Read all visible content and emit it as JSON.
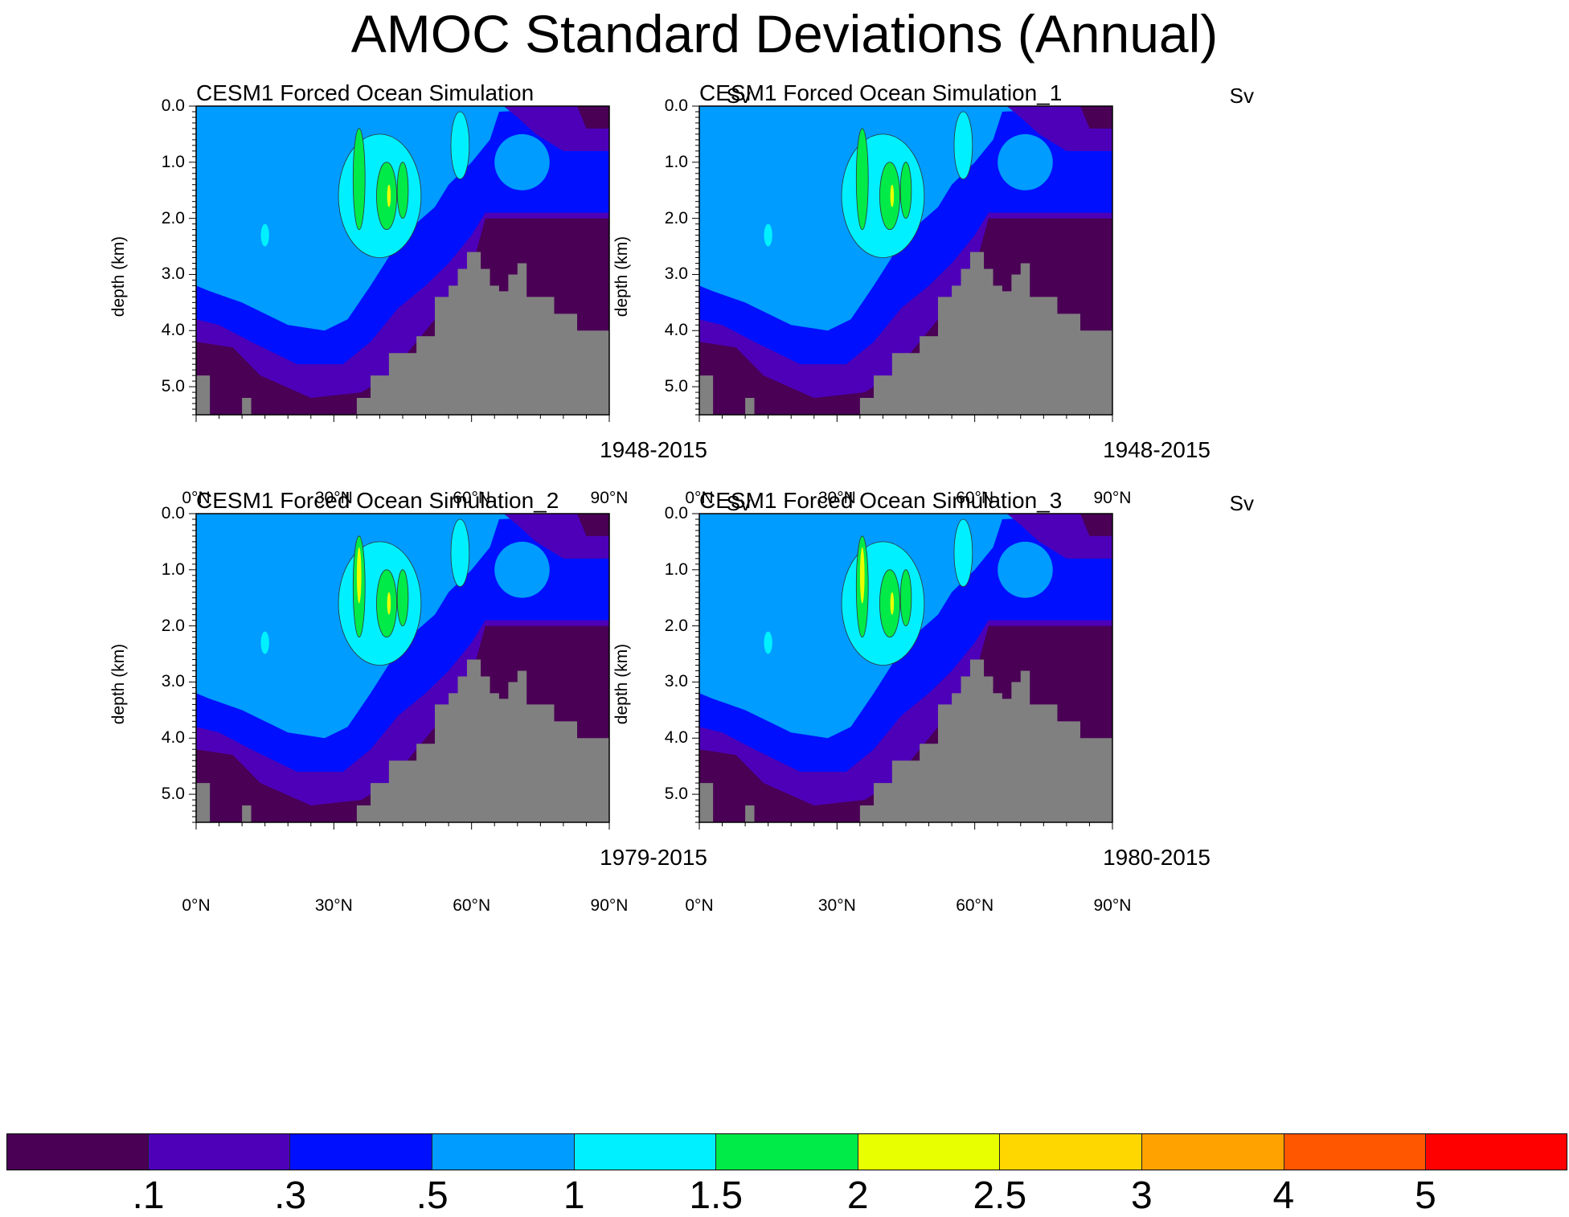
{
  "title": "AMOC Standard Deviations (Annual)",
  "colors": {
    "levels": [
      "#4a0055",
      "#4d00b8",
      "#0010ff",
      "#009cff",
      "#00f0ff",
      "#00ea48",
      "#e8ff00",
      "#ffd700",
      "#ffa200",
      "#ff5600",
      "#ff0000"
    ],
    "topography": "#808080"
  },
  "chart_data": [
    {
      "type": "heatmap",
      "title": "CESM1 Forced Ocean Simulation",
      "units": "Sv",
      "period": "1948-2015",
      "ylabel": "depth (km)",
      "xlabel": "",
      "xlim": [
        0,
        90
      ],
      "ylim": [
        5.5,
        0.0
      ],
      "xticks": [
        "0°N",
        "30°N",
        "60°N",
        "90°N"
      ],
      "yticks": [
        "0.0",
        "1.0",
        "2.0",
        "3.0",
        "4.0",
        "5.0"
      ]
    },
    {
      "type": "heatmap",
      "title": "CESM1 Forced Ocean Simulation_1",
      "units": "Sv",
      "period": "1948-2015",
      "ylabel": "depth (km)",
      "xlabel": "",
      "xlim": [
        0,
        90
      ],
      "ylim": [
        5.5,
        0.0
      ],
      "xticks": [
        "0°N",
        "30°N",
        "60°N",
        "90°N"
      ],
      "yticks": [
        "0.0",
        "1.0",
        "2.0",
        "3.0",
        "4.0",
        "5.0"
      ]
    },
    {
      "type": "heatmap",
      "title": "CESM1 Forced Ocean Simulation_2",
      "units": "Sv",
      "period": "1979-2015",
      "ylabel": "depth (km)",
      "xlabel": "",
      "xlim": [
        0,
        90
      ],
      "ylim": [
        5.5,
        0.0
      ],
      "xticks": [
        "0°N",
        "30°N",
        "60°N",
        "90°N"
      ],
      "yticks": [
        "0.0",
        "1.0",
        "2.0",
        "3.0",
        "4.0",
        "5.0"
      ]
    },
    {
      "type": "heatmap",
      "title": "CESM1 Forced Ocean Simulation_3",
      "units": "Sv",
      "period": "1980-2015",
      "ylabel": "depth (km)",
      "xlabel": "",
      "xlim": [
        0,
        90
      ],
      "ylim": [
        5.5,
        0.0
      ],
      "xticks": [
        "0°N",
        "30°N",
        "60°N",
        "90°N"
      ],
      "yticks": [
        "0.0",
        "1.0",
        "2.0",
        "3.0",
        "4.0",
        "5.0"
      ]
    }
  ],
  "colorbar": {
    "labels": [
      ".1",
      ".3",
      ".5",
      "1",
      "1.5",
      "2",
      "2.5",
      "3",
      "4",
      "5"
    ]
  }
}
